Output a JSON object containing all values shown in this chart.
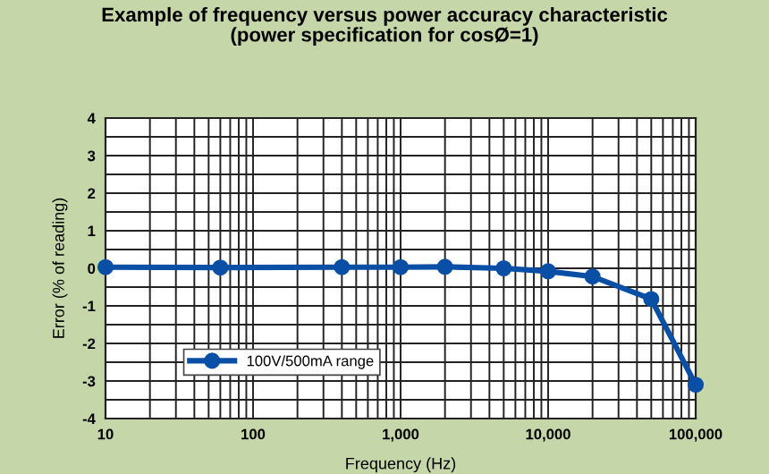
{
  "chart_data": {
    "type": "line",
    "title": "Example of frequency versus power accuracy characteristic\n(power specification for cosØ=1)",
    "xlabel": "Frequency (Hz)",
    "ylabel": "Error (% of reading)",
    "x": [
      10,
      60,
      400,
      1000,
      2000,
      5000,
      10000,
      20000,
      50000,
      100000
    ],
    "series": [
      {
        "name": "100V/500mA range",
        "color": "#0a4fa6",
        "values": [
          0.03,
          0.02,
          0.03,
          0.03,
          0.04,
          0.0,
          -0.08,
          -0.22,
          -0.82,
          -3.1
        ]
      }
    ],
    "log": "x",
    "xlim": [
      10,
      100000
    ],
    "xticks": [
      10,
      100,
      {
        "value": 1000,
        "label": "1,000"
      },
      {
        "value": 10000,
        "label": "10,000"
      },
      {
        "value": 100000,
        "label": "100,000"
      }
    ],
    "ylim": [
      -4,
      4
    ],
    "yticks": [
      -4,
      -3,
      -2,
      -1,
      0,
      1,
      2,
      3,
      4
    ],
    "grid": true,
    "legend": "bottom left",
    "marker": "circle",
    "line_style": "solid"
  }
}
